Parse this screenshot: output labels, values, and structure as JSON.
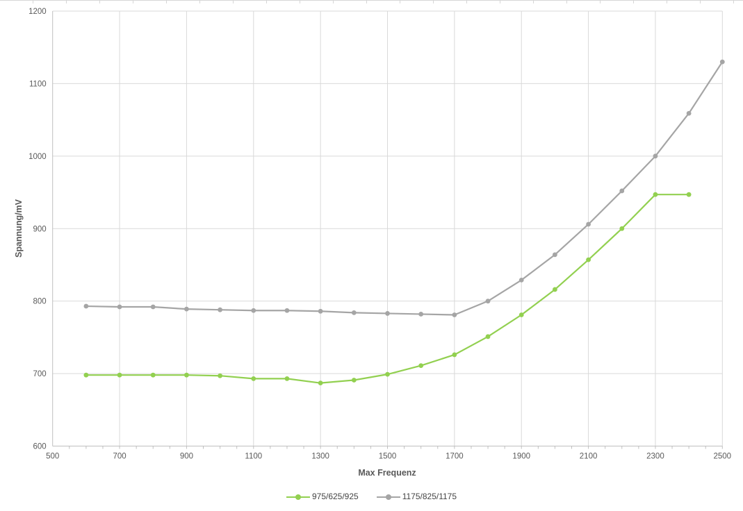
{
  "chart_data": {
    "type": "line",
    "title": "",
    "xlabel": "Max Frequenz",
    "ylabel": "Spannung/mV",
    "xlim": [
      500,
      2500
    ],
    "ylim": [
      600,
      1200
    ],
    "x_ticks": [
      500,
      700,
      900,
      1100,
      1300,
      1500,
      1700,
      1900,
      2100,
      2300,
      2500
    ],
    "x_minor_tick_step": 50,
    "y_ticks": [
      600,
      700,
      800,
      900,
      1000,
      1100,
      1200
    ],
    "grid": true,
    "legend_position": "bottom",
    "series": [
      {
        "name": "975/625/925",
        "color": "#92D050",
        "x": [
          600,
          700,
          800,
          900,
          1000,
          1100,
          1200,
          1300,
          1400,
          1500,
          1600,
          1700,
          1800,
          1900,
          2000,
          2100,
          2200,
          2300,
          2400
        ],
        "values": [
          698,
          698,
          698,
          698,
          697,
          693,
          693,
          687,
          691,
          699,
          711,
          726,
          751,
          781,
          816,
          857,
          900,
          947,
          947
        ]
      },
      {
        "name": "1175/825/1175",
        "color": "#A5A5A5",
        "x": [
          600,
          700,
          800,
          900,
          1000,
          1100,
          1200,
          1300,
          1400,
          1500,
          1600,
          1700,
          1800,
          1900,
          2000,
          2100,
          2200,
          2300,
          2400,
          2500
        ],
        "values": [
          793,
          792,
          792,
          789,
          788,
          787,
          787,
          786,
          784,
          783,
          782,
          781,
          800,
          829,
          864,
          906,
          952,
          1000,
          1059,
          1130
        ]
      }
    ]
  },
  "colors": {
    "gridline": "#d9d9d9",
    "axis_line": "#bfbfbf",
    "tick_label": "#595959",
    "axis_title": "#595959",
    "sheet_edge": "#d6d6d6"
  }
}
